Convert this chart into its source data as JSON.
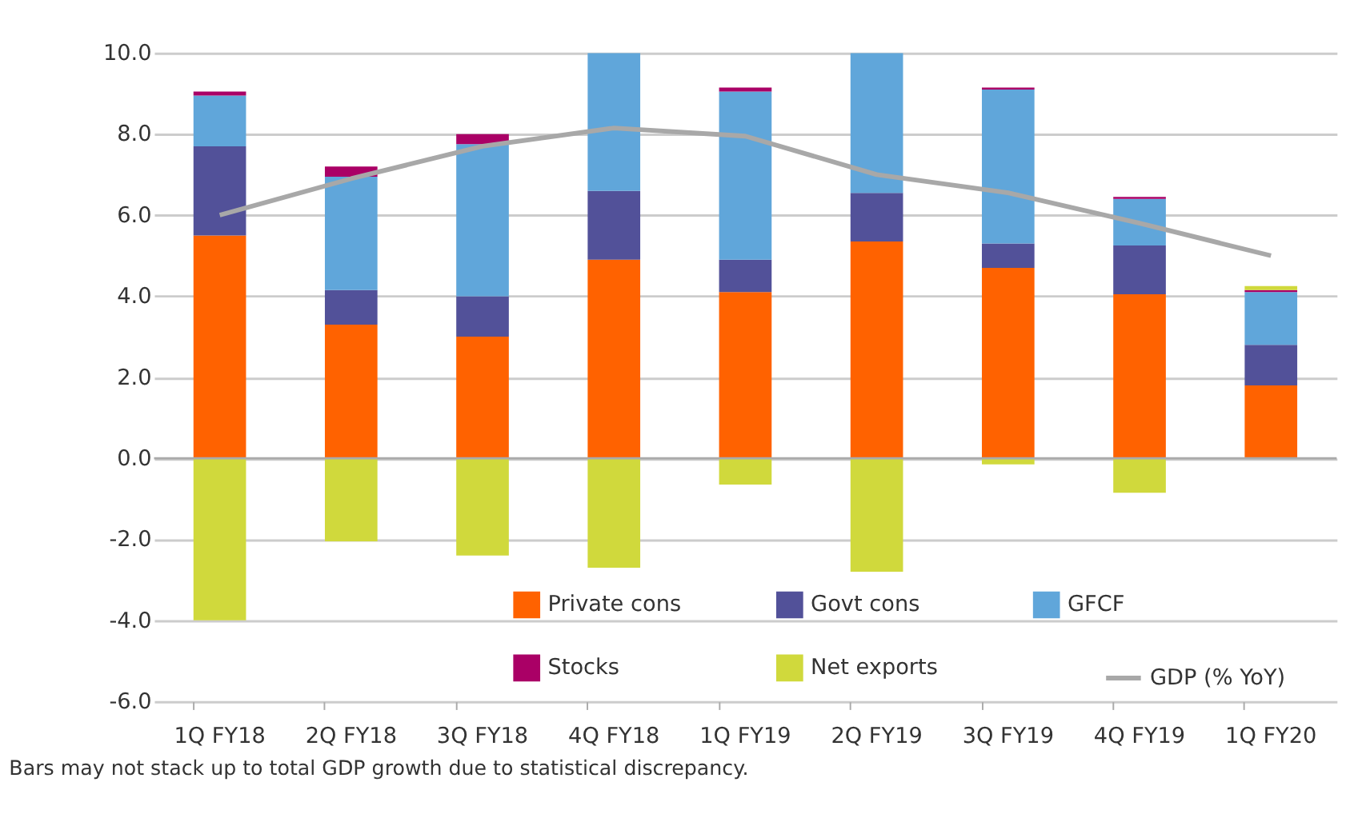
{
  "chart_data": {
    "type": "bar",
    "stacked": true,
    "categories": [
      "1Q FY18",
      "2Q FY18",
      "3Q FY18",
      "4Q FY18",
      "1Q FY19",
      "2Q FY19",
      "3Q FY19",
      "4Q FY19",
      "1Q FY20"
    ],
    "series": [
      {
        "name": "Private cons",
        "color": "#ff6200",
        "values": [
          5.5,
          3.3,
          3.0,
          4.9,
          4.1,
          5.35,
          4.7,
          4.05,
          1.8
        ]
      },
      {
        "name": "Govt cons",
        "color": "#525199",
        "values": [
          2.2,
          0.85,
          1.0,
          1.7,
          0.8,
          1.2,
          0.6,
          1.2,
          1.0
        ]
      },
      {
        "name": "GFCF",
        "color": "#60a6da",
        "values": [
          1.25,
          2.8,
          3.75,
          3.4,
          4.15,
          3.45,
          3.8,
          1.15,
          1.3
        ]
      },
      {
        "name": "Stocks",
        "color": "#aa0066",
        "values": [
          0.1,
          0.25,
          0.25,
          null,
          0.1,
          null,
          0.05,
          0.05,
          0.05
        ]
      },
      {
        "name": "Net exports",
        "color": "#d0d93c",
        "values": [
          -4.0,
          -2.05,
          -2.4,
          -2.7,
          -0.65,
          -2.8,
          -0.15,
          -0.85,
          0.1
        ]
      },
      {
        "name": "GDP (% YoY)",
        "type": "line",
        "color": "#a8a8a8",
        "values": [
          6.0,
          6.9,
          7.7,
          8.15,
          7.95,
          7.0,
          6.55,
          5.8,
          5.0
        ]
      }
    ],
    "ylim": [
      -6,
      10
    ],
    "yticks": [
      {
        "value": -6,
        "label": "-6.0"
      },
      {
        "value": -4,
        "label": "-4.0"
      },
      {
        "value": -2,
        "label": "-2.0"
      },
      {
        "value": 0,
        "label": "0.0"
      },
      {
        "value": 2,
        "label": "2.0"
      },
      {
        "value": 4,
        "label": "4.0"
      },
      {
        "value": 6,
        "label": "6.0"
      },
      {
        "value": 8,
        "label": "8.0"
      },
      {
        "value": 10,
        "label": "10.0"
      }
    ],
    "grid": "y",
    "legend": "bottom",
    "annotations": [
      "Bars may not stack up to total GDP growth due to statistical discrepancy."
    ]
  }
}
